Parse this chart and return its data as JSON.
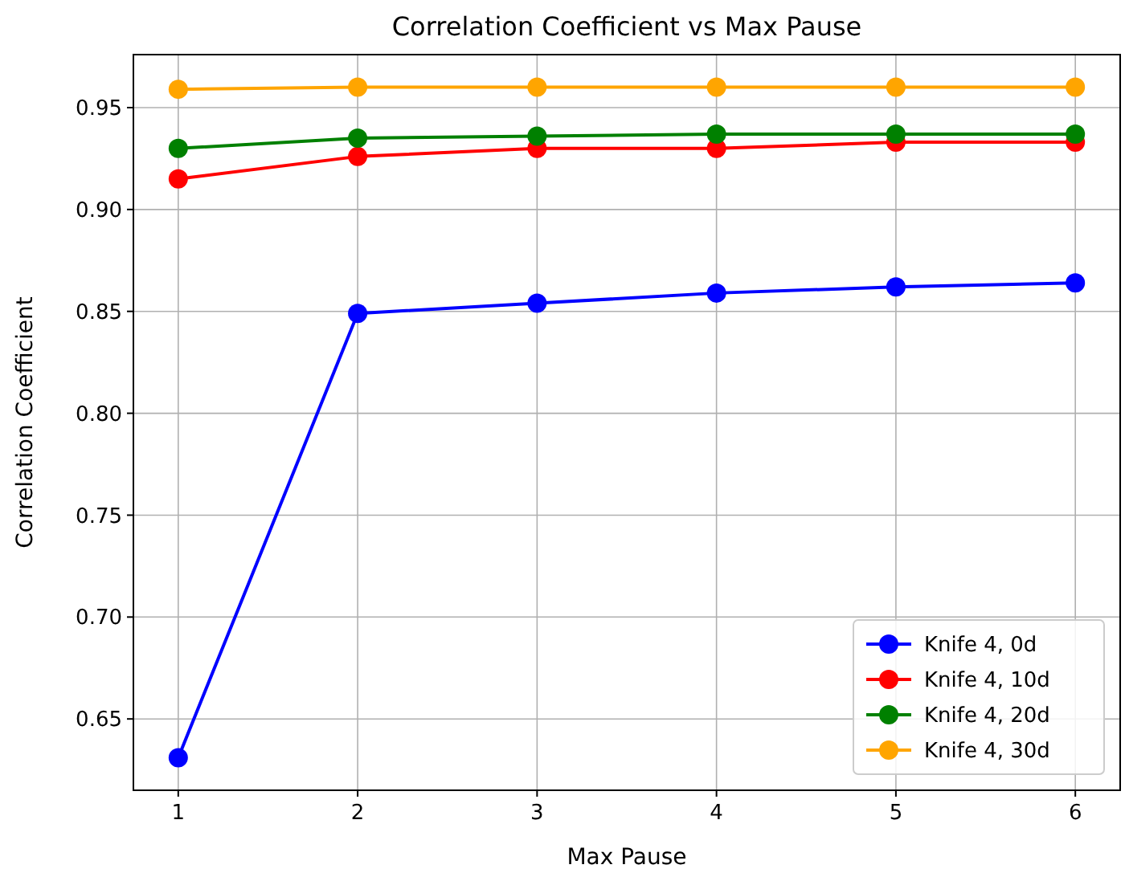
{
  "chart_data": {
    "type": "line",
    "title": "Correlation Coefficient vs Max Pause",
    "xlabel": "Max Pause",
    "ylabel": "Correlation Coefficient",
    "x": [
      1,
      2,
      3,
      4,
      5,
      6
    ],
    "series": [
      {
        "name": "Knife 4, 0d",
        "color": "#0000ff",
        "values": [
          0.631,
          0.849,
          0.854,
          0.859,
          0.862,
          0.864
        ]
      },
      {
        "name": "Knife 4, 10d",
        "color": "#ff0000",
        "values": [
          0.915,
          0.926,
          0.93,
          0.93,
          0.933,
          0.933
        ]
      },
      {
        "name": "Knife 4, 20d",
        "color": "#008000",
        "values": [
          0.93,
          0.935,
          0.936,
          0.937,
          0.937,
          0.937
        ]
      },
      {
        "name": "Knife 4, 30d",
        "color": "#ffa500",
        "values": [
          0.959,
          0.96,
          0.96,
          0.96,
          0.96,
          0.96
        ]
      }
    ],
    "xlim": [
      0.75,
      6.25
    ],
    "xticks": [
      1,
      2,
      3,
      4,
      5,
      6
    ],
    "ylim": [
      0.615,
      0.976
    ],
    "yticks": [
      {
        "value": 0.65,
        "label": "0.65"
      },
      {
        "value": 0.7,
        "label": "0.70"
      },
      {
        "value": 0.75,
        "label": "0.75"
      },
      {
        "value": 0.8,
        "label": "0.80"
      },
      {
        "value": 0.85,
        "label": "0.85"
      },
      {
        "value": 0.9,
        "label": "0.90"
      },
      {
        "value": 0.95,
        "label": "0.95"
      }
    ],
    "grid": true,
    "legend": "bottom right",
    "marker": "circle",
    "line_style": "solid"
  }
}
